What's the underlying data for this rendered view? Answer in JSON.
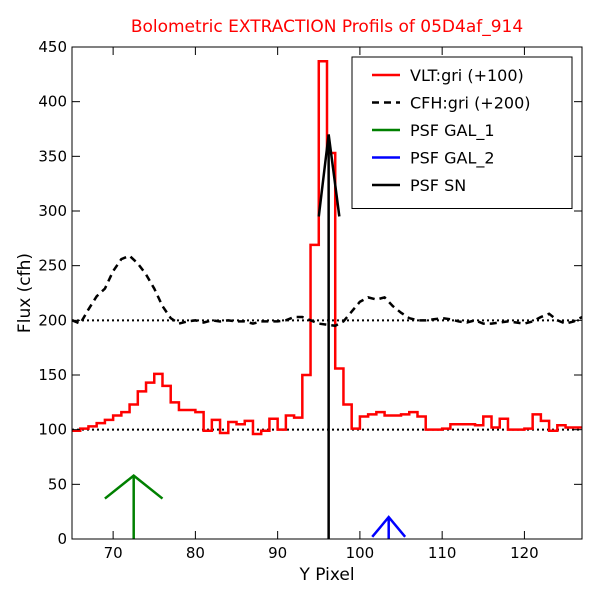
{
  "chart_data": {
    "type": "line",
    "title": "Bolometric EXTRACTION Profils of 05D4af_914",
    "title_color": "#ff0000",
    "xlabel": "Y Pixel",
    "ylabel": "Flux (cfh)",
    "xlim": [
      65,
      127
    ],
    "ylim": [
      0,
      450
    ],
    "x_ticks": [
      70,
      80,
      90,
      100,
      110,
      120
    ],
    "y_ticks": [
      0,
      50,
      100,
      150,
      200,
      250,
      300,
      350,
      400,
      450
    ],
    "grid": false,
    "legend_position": "top-right",
    "reference_lines": [
      {
        "y": 100,
        "style": "dotted",
        "color": "#000000"
      },
      {
        "y": 200,
        "style": "dotted",
        "color": "#000000"
      }
    ],
    "series": [
      {
        "name": "VLT:gri (+100)",
        "color": "#ff0000",
        "style": "step",
        "x": [
          65,
          66,
          67,
          68,
          69,
          70,
          71,
          72,
          73,
          74,
          75,
          76,
          77,
          78,
          79,
          80,
          81,
          82,
          83,
          84,
          85,
          86,
          87,
          88,
          89,
          90,
          91,
          92,
          93,
          94,
          95,
          96,
          97,
          98,
          99,
          100,
          101,
          102,
          103,
          104,
          105,
          106,
          107,
          108,
          109,
          110,
          111,
          112,
          113,
          114,
          115,
          116,
          117,
          118,
          119,
          120,
          121,
          122,
          123,
          124,
          125,
          126
        ],
        "y": [
          99,
          101,
          103,
          106,
          109,
          113,
          116,
          123,
          135,
          143,
          151,
          140,
          125,
          118,
          118,
          116,
          99,
          109,
          97,
          107,
          105,
          108,
          96,
          99,
          110,
          100,
          113,
          111,
          150,
          269,
          437,
          353,
          156,
          123,
          101,
          112,
          114,
          116,
          113,
          113,
          114,
          116,
          112,
          100,
          100,
          101,
          105,
          105,
          105,
          104,
          112,
          102,
          110,
          100,
          100,
          101,
          114,
          108,
          99,
          104,
          102,
          102
        ]
      },
      {
        "name": "CFH:gri (+200)",
        "color": "#000000",
        "style": "dashed",
        "x": [
          65,
          66,
          67,
          68,
          69,
          70,
          71,
          72,
          73,
          74,
          75,
          76,
          77,
          78,
          79,
          80,
          81,
          82,
          83,
          84,
          85,
          86,
          87,
          88,
          89,
          90,
          91,
          92,
          93,
          94,
          95,
          96,
          97,
          98,
          99,
          100,
          101,
          102,
          103,
          104,
          105,
          106,
          107,
          108,
          109,
          110,
          111,
          112,
          113,
          114,
          115,
          116,
          117,
          118,
          119,
          120,
          121,
          122,
          123,
          124,
          125,
          126,
          127
        ],
        "y": [
          200,
          197,
          210,
          222,
          229,
          245,
          256,
          259,
          252,
          242,
          229,
          213,
          202,
          197,
          199,
          200,
          198,
          200,
          199,
          200,
          199,
          199,
          197,
          199,
          199,
          199,
          200,
          203,
          203,
          200,
          197,
          196,
          195,
          199,
          208,
          217,
          221,
          219,
          221,
          213,
          207,
          202,
          200,
          200,
          201,
          202,
          201,
          199,
          198,
          200,
          197,
          197,
          198,
          199,
          198,
          197,
          199,
          203,
          206,
          200,
          197,
          199,
          203
        ]
      },
      {
        "name": "PSF GAL_1",
        "color": "#008000",
        "style": "arrow",
        "x_position": 72.5,
        "peak": 58,
        "wing_left_x": 69,
        "wing_right_x": 76,
        "wing_y": 37
      },
      {
        "name": "PSF GAL_2",
        "color": "#0000ff",
        "style": "arrow",
        "x_position": 103.5,
        "peak": 20,
        "wing_left_x": 101.5,
        "wing_right_x": 105.5,
        "wing_y": 2
      },
      {
        "name": "PSF SN",
        "color": "#000000",
        "style": "arrow",
        "x_position": 96.2,
        "peak": 370,
        "wing_left_x": 95,
        "wing_right_x": 97.5,
        "wing_y": 295
      }
    ]
  }
}
